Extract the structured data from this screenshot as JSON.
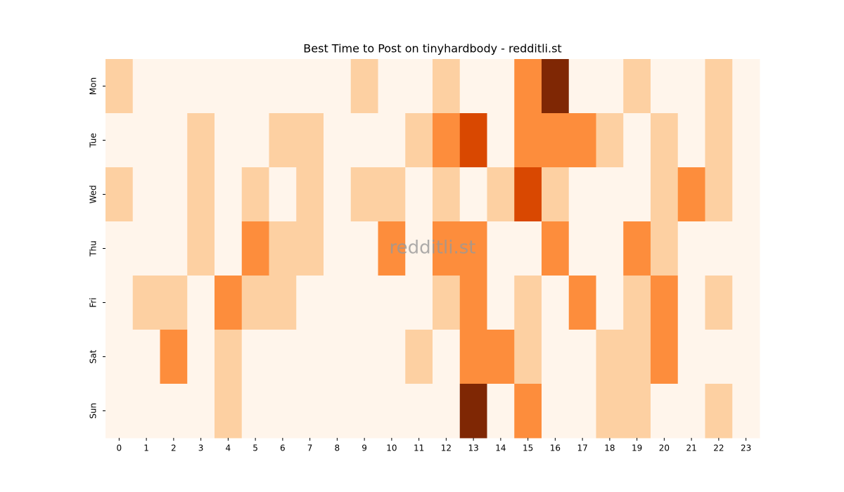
{
  "chart_data": {
    "type": "heatmap",
    "title": "Best Time to Post on tinyhardbody - redditli.st",
    "watermark": "redditli.st",
    "x": [
      0,
      1,
      2,
      3,
      4,
      5,
      6,
      7,
      8,
      9,
      10,
      11,
      12,
      13,
      14,
      15,
      16,
      17,
      18,
      19,
      20,
      21,
      22,
      23
    ],
    "categories": [
      "Mon",
      "Tue",
      "Wed",
      "Thu",
      "Fri",
      "Sat",
      "Sun"
    ],
    "colorscale": [
      "#fff5eb",
      "#fdd0a2",
      "#fd8d3c",
      "#d94801",
      "#7f2704"
    ],
    "zlim": [
      0,
      4
    ],
    "values": [
      [
        1,
        0,
        0,
        0,
        0,
        0,
        0,
        0,
        0,
        1,
        0,
        0,
        1,
        0,
        0,
        2,
        4,
        0,
        0,
        1,
        0,
        0,
        1,
        0
      ],
      [
        0,
        0,
        0,
        1,
        0,
        0,
        1,
        1,
        0,
        0,
        0,
        1,
        2,
        3,
        0,
        2,
        2,
        2,
        1,
        0,
        1,
        0,
        1,
        0
      ],
      [
        1,
        0,
        0,
        1,
        0,
        1,
        0,
        1,
        0,
        1,
        1,
        0,
        1,
        0,
        1,
        3,
        1,
        0,
        0,
        0,
        1,
        2,
        1,
        0
      ],
      [
        0,
        0,
        0,
        1,
        0,
        2,
        1,
        1,
        0,
        0,
        2,
        0,
        2,
        2,
        0,
        0,
        2,
        0,
        0,
        2,
        1,
        0,
        0,
        0
      ],
      [
        0,
        1,
        1,
        0,
        2,
        1,
        1,
        0,
        0,
        0,
        0,
        0,
        1,
        2,
        0,
        1,
        0,
        2,
        0,
        1,
        2,
        0,
        1,
        0
      ],
      [
        0,
        0,
        2,
        0,
        1,
        0,
        0,
        0,
        0,
        0,
        0,
        1,
        0,
        2,
        2,
        1,
        0,
        0,
        1,
        1,
        2,
        0,
        0,
        0
      ],
      [
        0,
        0,
        0,
        0,
        1,
        0,
        0,
        0,
        0,
        0,
        0,
        0,
        0,
        4,
        0,
        2,
        0,
        0,
        1,
        1,
        0,
        0,
        1,
        0
      ]
    ]
  }
}
